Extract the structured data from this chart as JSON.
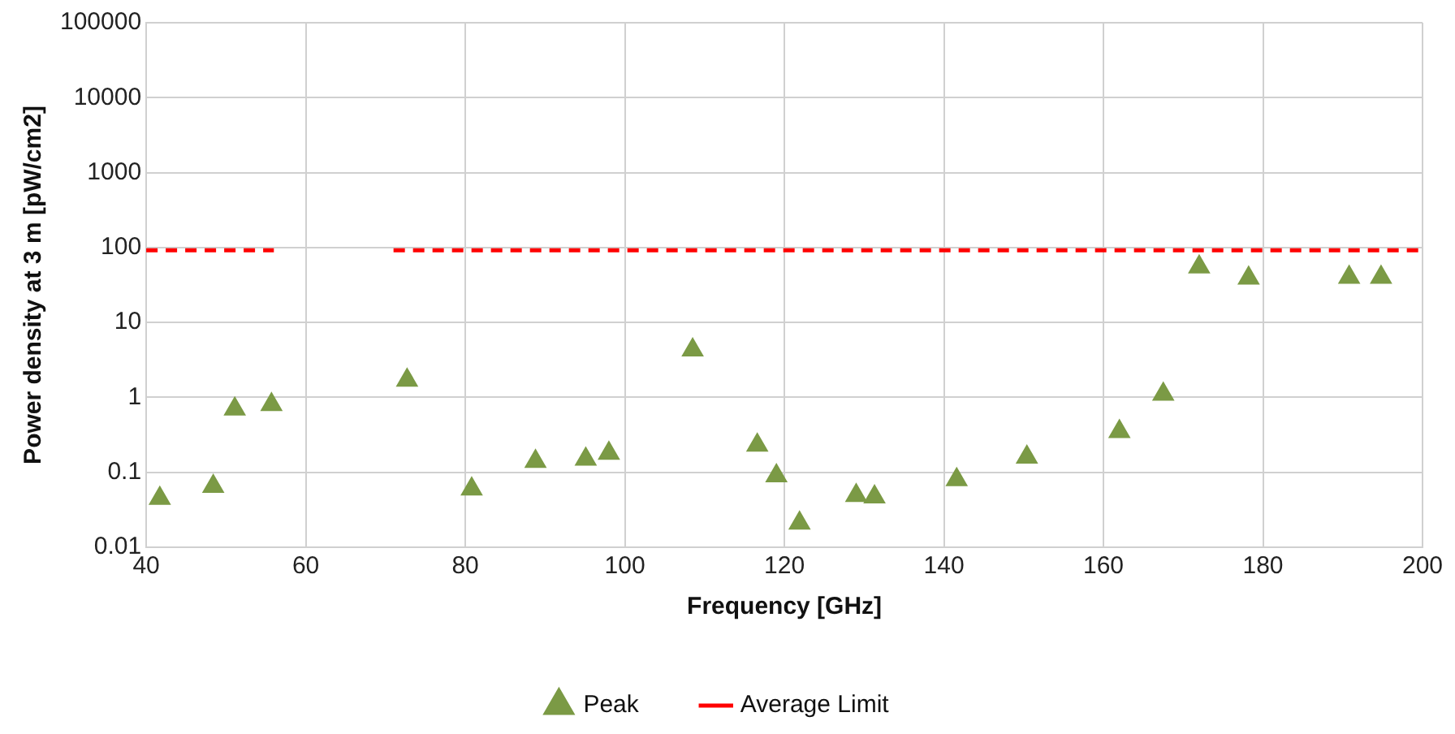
{
  "chart_data": {
    "type": "scatter",
    "xlabel": "Frequency [GHz]",
    "ylabel": "Power density at 3 m [pW/cm2]",
    "xlim": [
      40,
      200
    ],
    "xticks": [
      40,
      60,
      80,
      100,
      120,
      140,
      160,
      180,
      200
    ],
    "ylim": [
      0.01,
      100000
    ],
    "yticks": [
      0.01,
      0.1,
      1,
      10,
      100,
      1000,
      10000,
      100000
    ],
    "log": "y",
    "grid": true,
    "legend": "bottom",
    "series": [
      {
        "name": "Peak",
        "type": "scatter",
        "marker": "triangle",
        "color": "#7b9a45",
        "x": [
          41.7,
          48.4,
          51.1,
          55.7,
          72.7,
          80.8,
          88.8,
          95.1,
          98,
          108.5,
          116.6,
          119,
          121.9,
          129,
          131.3,
          141.6,
          150.4,
          162,
          167.5,
          172,
          178.2,
          190.8,
          194.8
        ],
        "values": [
          0.045,
          0.065,
          0.7,
          0.8,
          1.7,
          0.06,
          0.14,
          0.15,
          0.18,
          4.3,
          0.23,
          0.09,
          0.021,
          0.049,
          0.047,
          0.08,
          0.16,
          0.35,
          1.1,
          55,
          39,
          40,
          40
        ]
      },
      {
        "name": "Average Limit",
        "type": "line",
        "marker": "none",
        "color": "#ff0000",
        "line_style": "dashed",
        "x": [
          40,
          56,
          63,
          71,
          200
        ],
        "values": [
          92,
          92,
          null,
          92,
          92
        ]
      }
    ]
  }
}
